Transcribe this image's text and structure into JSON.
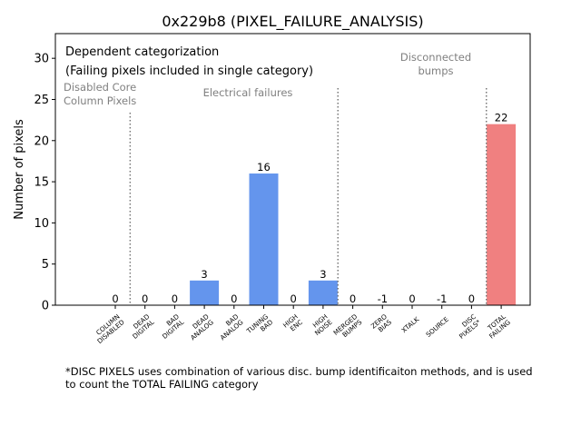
{
  "chart_data": {
    "type": "bar",
    "title": "0x229b8 (PIXEL_FAILURE_ANALYSIS)",
    "xlabel": "",
    "ylabel": "Number of pixels",
    "ylim": [
      0,
      33
    ],
    "yticks": [
      0,
      5,
      10,
      15,
      20,
      25,
      30
    ],
    "categories": [
      [
        "COLUMN",
        "DISABLED"
      ],
      [
        "DEAD",
        "DIGITAL"
      ],
      [
        "BAD",
        "DIGITAL"
      ],
      [
        "DEAD",
        "ANALOG"
      ],
      [
        "BAD",
        "ANALOG"
      ],
      [
        "TUNING",
        "BAD"
      ],
      [
        "HIGH",
        "ENC"
      ],
      [
        "HIGH",
        "NOISE"
      ],
      [
        "MERGED",
        "BUMPS"
      ],
      [
        "ZERO",
        "BIAS"
      ],
      [
        "XTALK"
      ],
      [
        "SOURCE"
      ],
      [
        "DISC",
        "PIXELS*"
      ],
      [
        "TOTAL",
        "FAILING"
      ]
    ],
    "values": [
      0,
      0,
      0,
      3,
      0,
      16,
      0,
      3,
      0,
      -1,
      0,
      -1,
      0,
      22
    ],
    "data_labels": [
      "0",
      "0",
      "0",
      "3",
      "0",
      "16",
      "0",
      "3",
      "0",
      "-1",
      "0",
      "-1",
      "0",
      "22"
    ],
    "bar_colors": [
      "#6495ed",
      "#6495ed",
      "#6495ed",
      "#6495ed",
      "#6495ed",
      "#6495ed",
      "#6495ed",
      "#6495ed",
      "#6495ed",
      "#6495ed",
      "#6495ed",
      "#6495ed",
      "#6495ed",
      "#f08080"
    ],
    "annotations": {
      "legend_line1": "Dependent categorization",
      "legend_line2": "(Failing pixels included in single category)",
      "group_disabled": [
        "Disabled Core",
        "Column Pixels"
      ],
      "group_electrical": "Electrical failures",
      "group_disconnected": [
        "Disconnected",
        "bumps"
      ]
    },
    "separators_after_category": [
      0,
      7,
      12
    ]
  },
  "footnote": {
    "line1": "*DISC PIXELS uses combination of various disc. bump identificaiton methods, and is used",
    "line2": "to count the TOTAL FAILING category"
  }
}
